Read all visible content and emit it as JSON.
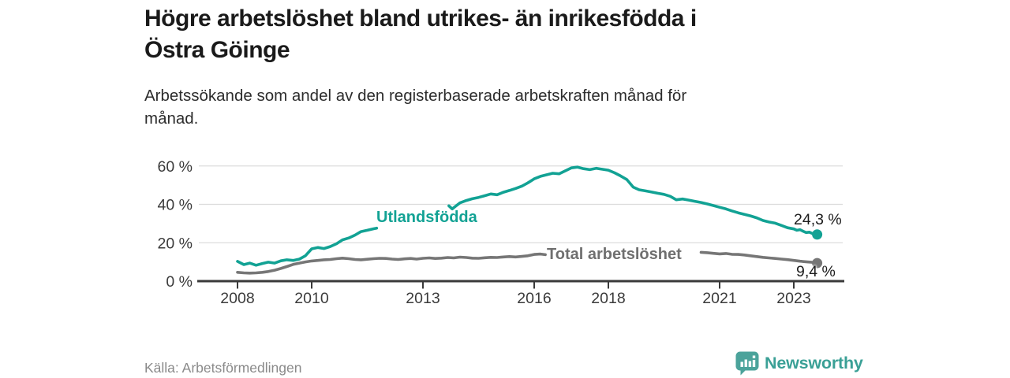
{
  "header": {
    "title": "Högre arbetslöshet bland utrikes- än inrikesfödda i Östra Göinge",
    "title_lines": [
      "Högre arbetslöshet bland utrikes- än inrikesfödda i",
      "Östra Göinge"
    ],
    "subtitle": "Arbetssökande som andel av den registerbaserade arbetskraften månad för månad.",
    "subtitle_lines": [
      "Arbetssökande som andel av den registerbaserade arbetskraften månad för",
      "månad."
    ]
  },
  "footer": {
    "source": "Källa: Arbetsförmedlingen",
    "brand_name": "Newsworthy",
    "brand_icon": "newsworthy-bar-chart-pin-icon"
  },
  "colors": {
    "accent_teal": "#12a294",
    "line_gray": "#767676",
    "brand_teal": "#3aa096",
    "axis": "#3a3a3a",
    "grid": "#dcdcdc"
  },
  "chart_data": {
    "type": "line",
    "title": "Högre arbetslöshet bland utrikes- än inrikesfödda i Östra Göinge",
    "subtitle": "Arbetssökande som andel av den registerbaserade arbetskraften månad för månad.",
    "grid": true,
    "legend_position": "inline-labels",
    "x_axis": {
      "ticks": [
        2008,
        2010,
        2013,
        2016,
        2018,
        2021,
        2023
      ],
      "range": [
        2008,
        2023.75
      ]
    },
    "y_axis": {
      "ticks": [
        0,
        20,
        40,
        60
      ],
      "tick_suffix": " %",
      "range": [
        0,
        60
      ]
    },
    "series": [
      {
        "name": "Utlandsfödda",
        "slug": "utlandsfodda",
        "color": "#12a294",
        "end_value": 24.3,
        "end_label": "24,3 %",
        "segments": [
          [
            [
              2008.0,
              10.3
            ],
            [
              2008.17,
              8.6
            ],
            [
              2008.33,
              9.4
            ],
            [
              2008.5,
              8.3
            ],
            [
              2008.67,
              9.2
            ],
            [
              2008.83,
              9.9
            ],
            [
              2009.0,
              9.4
            ],
            [
              2009.17,
              10.6
            ],
            [
              2009.33,
              11.1
            ],
            [
              2009.5,
              10.8
            ],
            [
              2009.67,
              11.5
            ],
            [
              2009.83,
              13.2
            ],
            [
              2010.0,
              16.8
            ],
            [
              2010.17,
              17.5
            ],
            [
              2010.33,
              17.0
            ],
            [
              2010.5,
              18.0
            ],
            [
              2010.67,
              19.5
            ],
            [
              2010.83,
              21.5
            ],
            [
              2011.0,
              22.5
            ],
            [
              2011.17,
              24.0
            ],
            [
              2011.33,
              25.8
            ],
            [
              2011.5,
              26.5
            ],
            [
              2011.67,
              27.3
            ],
            [
              2011.75,
              27.6
            ]
          ],
          [
            [
              2013.7,
              39.2
            ],
            [
              2013.79,
              37.6
            ],
            [
              2013.88,
              39.0
            ],
            [
              2014.0,
              40.8
            ],
            [
              2014.17,
              42.0
            ],
            [
              2014.33,
              42.9
            ],
            [
              2014.5,
              43.6
            ],
            [
              2014.67,
              44.5
            ],
            [
              2014.83,
              45.4
            ],
            [
              2015.0,
              45.0
            ],
            [
              2015.17,
              46.3
            ],
            [
              2015.33,
              47.2
            ],
            [
              2015.5,
              48.3
            ],
            [
              2015.67,
              49.5
            ],
            [
              2015.83,
              51.2
            ],
            [
              2016.0,
              53.3
            ],
            [
              2016.17,
              54.6
            ],
            [
              2016.33,
              55.4
            ],
            [
              2016.5,
              56.2
            ],
            [
              2016.67,
              55.9
            ],
            [
              2016.83,
              57.4
            ],
            [
              2017.0,
              59.0
            ],
            [
              2017.17,
              59.4
            ],
            [
              2017.33,
              58.6
            ],
            [
              2017.5,
              58.1
            ],
            [
              2017.67,
              58.8
            ],
            [
              2017.83,
              58.3
            ],
            [
              2018.0,
              57.8
            ],
            [
              2018.17,
              56.4
            ],
            [
              2018.33,
              54.8
            ],
            [
              2018.5,
              52.9
            ],
            [
              2018.67,
              49.0
            ],
            [
              2018.83,
              47.6
            ],
            [
              2019.0,
              47.0
            ],
            [
              2019.17,
              46.4
            ],
            [
              2019.33,
              45.8
            ],
            [
              2019.5,
              45.2
            ],
            [
              2019.67,
              44.2
            ],
            [
              2019.83,
              42.4
            ],
            [
              2020.0,
              42.8
            ],
            [
              2020.17,
              42.2
            ],
            [
              2020.33,
              41.6
            ],
            [
              2020.5,
              41.0
            ],
            [
              2020.67,
              40.2
            ],
            [
              2020.83,
              39.4
            ],
            [
              2021.0,
              38.5
            ],
            [
              2021.17,
              37.6
            ],
            [
              2021.33,
              36.6
            ],
            [
              2021.5,
              35.6
            ],
            [
              2021.67,
              34.8
            ],
            [
              2021.83,
              34.0
            ],
            [
              2022.0,
              33.0
            ],
            [
              2022.17,
              31.6
            ],
            [
              2022.33,
              30.8
            ],
            [
              2022.5,
              30.2
            ],
            [
              2022.67,
              29.0
            ],
            [
              2022.83,
              27.8
            ],
            [
              2023.0,
              27.2
            ],
            [
              2023.08,
              26.5
            ],
            [
              2023.17,
              26.8
            ],
            [
              2023.25,
              26.0
            ],
            [
              2023.33,
              25.3
            ],
            [
              2023.42,
              25.5
            ],
            [
              2023.5,
              24.8
            ],
            [
              2023.63,
              24.3
            ]
          ]
        ]
      },
      {
        "name": "Total arbetslöshet",
        "slug": "total-arbetsloshet",
        "color": "#767676",
        "end_value": 9.4,
        "end_label": "9,4 %",
        "segments": [
          [
            [
              2008.0,
              4.6
            ],
            [
              2008.17,
              4.3
            ],
            [
              2008.33,
              4.2
            ],
            [
              2008.5,
              4.3
            ],
            [
              2008.67,
              4.6
            ],
            [
              2008.83,
              5.0
            ],
            [
              2009.0,
              5.7
            ],
            [
              2009.17,
              6.6
            ],
            [
              2009.33,
              7.6
            ],
            [
              2009.5,
              8.7
            ],
            [
              2009.67,
              9.4
            ],
            [
              2009.83,
              10.0
            ],
            [
              2010.0,
              10.5
            ],
            [
              2010.17,
              10.8
            ],
            [
              2010.33,
              11.1
            ],
            [
              2010.5,
              11.3
            ],
            [
              2010.67,
              11.7
            ],
            [
              2010.83,
              12.0
            ],
            [
              2011.0,
              11.7
            ],
            [
              2011.17,
              11.3
            ],
            [
              2011.33,
              11.1
            ],
            [
              2011.5,
              11.4
            ],
            [
              2011.67,
              11.7
            ],
            [
              2011.83,
              11.9
            ],
            [
              2012.0,
              11.8
            ],
            [
              2012.17,
              11.5
            ],
            [
              2012.33,
              11.3
            ],
            [
              2012.5,
              11.6
            ],
            [
              2012.67,
              11.8
            ],
            [
              2012.83,
              11.5
            ],
            [
              2013.0,
              11.9
            ],
            [
              2013.17,
              12.1
            ],
            [
              2013.33,
              11.8
            ],
            [
              2013.5,
              12.0
            ],
            [
              2013.67,
              12.3
            ],
            [
              2013.83,
              12.1
            ],
            [
              2014.0,
              12.5
            ],
            [
              2014.17,
              12.3
            ],
            [
              2014.33,
              12.0
            ],
            [
              2014.5,
              11.9
            ],
            [
              2014.67,
              12.2
            ],
            [
              2014.83,
              12.4
            ],
            [
              2015.0,
              12.3
            ],
            [
              2015.17,
              12.6
            ],
            [
              2015.33,
              12.8
            ],
            [
              2015.5,
              12.6
            ],
            [
              2015.67,
              12.9
            ],
            [
              2015.83,
              13.2
            ],
            [
              2016.0,
              13.9
            ],
            [
              2016.17,
              14.1
            ],
            [
              2016.3,
              13.8
            ]
          ],
          [
            [
              2020.5,
              15.0
            ],
            [
              2020.67,
              14.8
            ],
            [
              2020.83,
              14.5
            ],
            [
              2021.0,
              14.2
            ],
            [
              2021.17,
              14.4
            ],
            [
              2021.33,
              14.0
            ],
            [
              2021.5,
              13.9
            ],
            [
              2021.67,
              13.6
            ],
            [
              2021.83,
              13.2
            ],
            [
              2022.0,
              12.8
            ],
            [
              2022.17,
              12.4
            ],
            [
              2022.33,
              12.1
            ],
            [
              2022.5,
              11.8
            ],
            [
              2022.67,
              11.5
            ],
            [
              2022.83,
              11.2
            ],
            [
              2023.0,
              10.8
            ],
            [
              2023.17,
              10.4
            ],
            [
              2023.33,
              10.1
            ],
            [
              2023.5,
              9.8
            ],
            [
              2023.63,
              9.4
            ]
          ]
        ]
      }
    ]
  }
}
